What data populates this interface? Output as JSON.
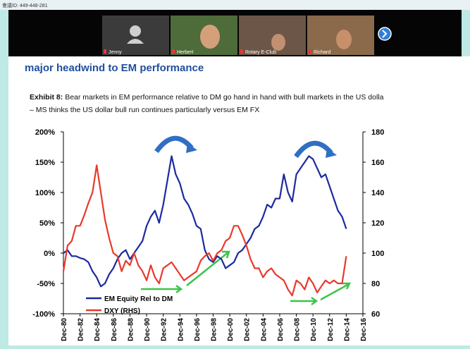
{
  "meeting": {
    "id_text": "會議ID: 449-448-281",
    "participants": [
      "Jenny",
      "Herbert",
      "Rotary E-Club",
      "Richard"
    ]
  },
  "slide": {
    "heading": "major headwind to EM performance",
    "exhibit_label": "Exhibit 8:",
    "exhibit_text": "Bear markets in EM performance relative to DM go hand in hand with bull markets in the US dolla",
    "exhibit_text_2": "– MS thinks the US dollar bull run continues particularly versus EM FX"
  },
  "chart_data": {
    "type": "line",
    "x": [
      "Dec-80",
      "Jun-81",
      "Dec-81",
      "Jun-82",
      "Dec-82",
      "Jun-83",
      "Dec-83",
      "Jun-84",
      "Dec-84",
      "Jun-85",
      "Dec-85",
      "Jun-86",
      "Dec-86",
      "Jun-87",
      "Dec-87",
      "Jun-88",
      "Dec-88",
      "Jun-89",
      "Dec-89",
      "Jun-90",
      "Dec-90",
      "Jun-91",
      "Dec-91",
      "Jun-92",
      "Dec-92",
      "Jun-93",
      "Dec-93",
      "Jun-94",
      "Dec-94",
      "Jun-95",
      "Dec-95",
      "Jun-96",
      "Dec-96",
      "Jun-97",
      "Dec-97",
      "Jun-98",
      "Dec-98",
      "Jun-99",
      "Dec-99",
      "Jun-00",
      "Dec-00",
      "Jun-01",
      "Dec-01",
      "Jun-02",
      "Dec-02",
      "Jun-03",
      "Dec-03",
      "Jun-04",
      "Dec-04",
      "Jun-05",
      "Dec-05",
      "Jun-06",
      "Dec-06",
      "Jun-07",
      "Dec-07",
      "Jun-08",
      "Dec-08",
      "Jun-09",
      "Dec-09",
      "Jun-10",
      "Dec-10",
      "Jun-11",
      "Dec-11",
      "Jun-12",
      "Dec-12",
      "Jun-13",
      "Dec-13",
      "Jun-14",
      "Dec-14"
    ],
    "series": [
      {
        "name": "EM Equity Rel to DM",
        "color": "#1b2a9e",
        "values": [
          0,
          5,
          -5,
          -5,
          -8,
          -10,
          -15,
          -30,
          -40,
          -55,
          -50,
          -35,
          -25,
          -10,
          0,
          5,
          -10,
          0,
          10,
          20,
          45,
          60,
          70,
          50,
          80,
          120,
          160,
          130,
          115,
          90,
          80,
          65,
          45,
          40,
          5,
          -10,
          -15,
          -5,
          -10,
          -25,
          -20,
          -15,
          0,
          5,
          15,
          25,
          40,
          45,
          60,
          80,
          75,
          90,
          90,
          130,
          100,
          85,
          130,
          140,
          150,
          160,
          155,
          140,
          125,
          130,
          110,
          90,
          70,
          60,
          40
        ]
      },
      {
        "name": "DXY (RHS)",
        "color": "#e8392c",
        "axis": "y2",
        "values": [
          88,
          105,
          108,
          118,
          118,
          125,
          133,
          140,
          158,
          140,
          122,
          110,
          100,
          98,
          88,
          95,
          92,
          100,
          92,
          88,
          82,
          92,
          84,
          80,
          90,
          92,
          94,
          90,
          86,
          82,
          84,
          86,
          88,
          95,
          98,
          100,
          95,
          100,
          102,
          108,
          110,
          118,
          118,
          112,
          105,
          96,
          90,
          90,
          84,
          88,
          90,
          86,
          84,
          82,
          76,
          72,
          82,
          80,
          76,
          84,
          80,
          74,
          78,
          82,
          80,
          82,
          80,
          80,
          98
        ]
      }
    ],
    "xticks": [
      "Dec-80",
      "Dec-82",
      "Dec-84",
      "Dec-86",
      "Dec-88",
      "Dec-90",
      "Dec-92",
      "Dec-94",
      "Dec-96",
      "Dec-98",
      "Dec-00",
      "Dec-02",
      "Dec-04",
      "Dec-06",
      "Dec-08",
      "Dec-10",
      "Dec-12",
      "Dec-14",
      "Dec-16"
    ],
    "ylim": [
      -100,
      200
    ],
    "yticks": [
      {
        "value": -100,
        "label": "-100%"
      },
      {
        "value": -50,
        "label": "-50%"
      },
      {
        "value": 0,
        "label": "0%"
      },
      {
        "value": 50,
        "label": "50%"
      },
      {
        "value": 100,
        "label": "100%"
      },
      {
        "value": 150,
        "label": "150%"
      },
      {
        "value": 200,
        "label": "200%"
      }
    ],
    "y2lim": [
      60,
      180
    ],
    "y2ticks": [
      60,
      80,
      100,
      120,
      140,
      160,
      180
    ],
    "legend": "lower-left"
  }
}
